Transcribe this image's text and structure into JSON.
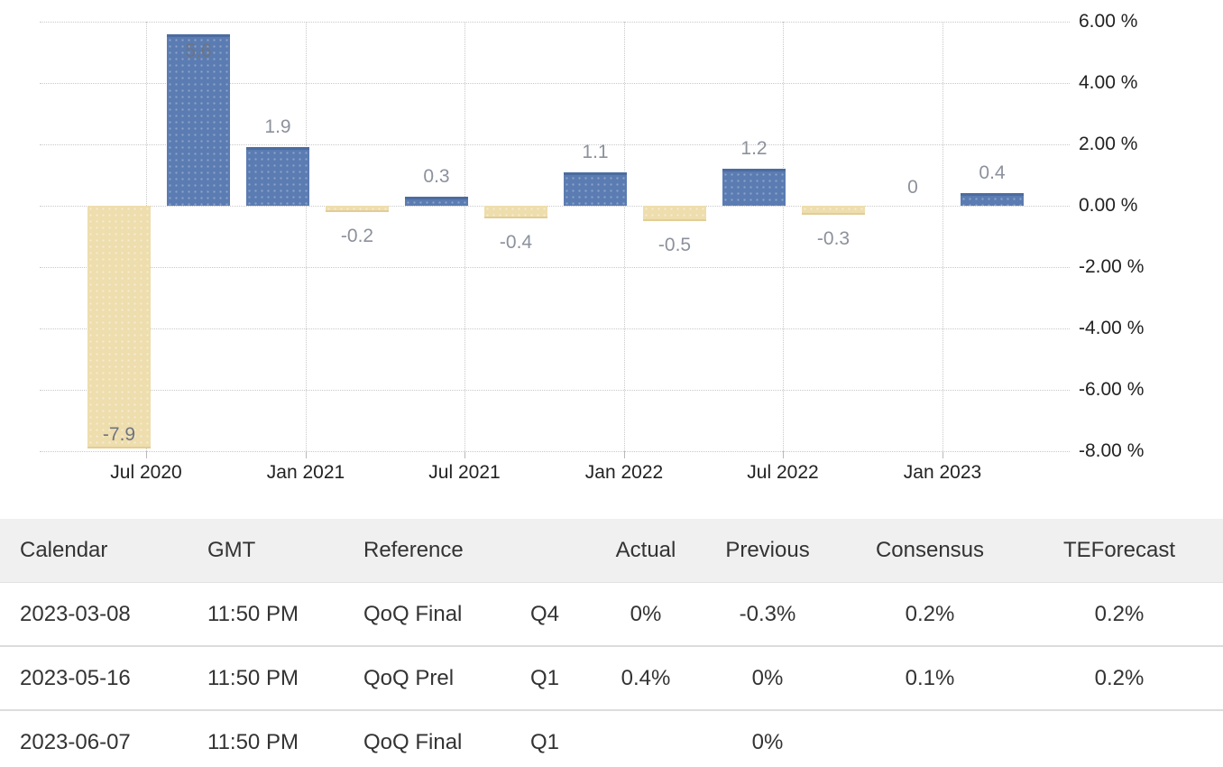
{
  "colors": {
    "positive_bar": "#5B7CB2",
    "positive_bar_border": "#4C6CA1",
    "negative_bar": "#EEDDAD",
    "negative_bar_border": "#E2CD96",
    "gridline": "#C9C9C9",
    "axis_text": "#222222",
    "bar_label_text": "#8C919C",
    "table_text": "#333333",
    "table_header_bg": "#F0F0F0",
    "row_divider": "#DCDCDC"
  },
  "chart_data": {
    "type": "bar",
    "title": "",
    "unit": "%",
    "bar_values": [
      -7.9,
      5.6,
      1.9,
      -0.2,
      0.3,
      -0.4,
      1.1,
      -0.5,
      1.2,
      -0.3,
      0,
      0.4
    ],
    "bar_value_labels": [
      "-7.9",
      "5.6",
      "1.9",
      "-0.2",
      "0.3",
      "-0.4",
      "1.1",
      "-0.5",
      "1.2",
      "-0.3",
      "0",
      "0.4"
    ],
    "x_axis": {
      "tick_labels": [
        "Jul 2020",
        "Jan 2021",
        "Jul 2021",
        "Jan 2022",
        "Jul 2022",
        "Jan 2023"
      ]
    },
    "y_axis": {
      "tick_labels": [
        "6.00 %",
        "4.00 %",
        "2.00 %",
        "0.00 %",
        "-2.00 %",
        "-4.00 %",
        "-6.00 %",
        "-8.00 %"
      ],
      "tick_values": [
        6,
        4,
        2,
        0,
        -2,
        -4,
        -6,
        -8
      ],
      "range": [
        -8,
        6.5
      ]
    },
    "grid": "dotted",
    "legend": "none"
  },
  "table": {
    "headers": [
      "Calendar",
      "GMT",
      "Reference",
      "",
      "Actual",
      "Previous",
      "Consensus",
      "TEForecast"
    ],
    "rows": [
      [
        "2023-03-08",
        "11:50 PM",
        "QoQ Final",
        "Q4",
        "0%",
        "-0.3%",
        "0.2%",
        "0.2%"
      ],
      [
        "2023-05-16",
        "11:50 PM",
        "QoQ Prel",
        "Q1",
        "0.4%",
        "0%",
        "0.1%",
        "0.2%"
      ],
      [
        "2023-06-07",
        "11:50 PM",
        "QoQ Final",
        "Q1",
        "",
        "0%",
        "",
        ""
      ]
    ]
  }
}
